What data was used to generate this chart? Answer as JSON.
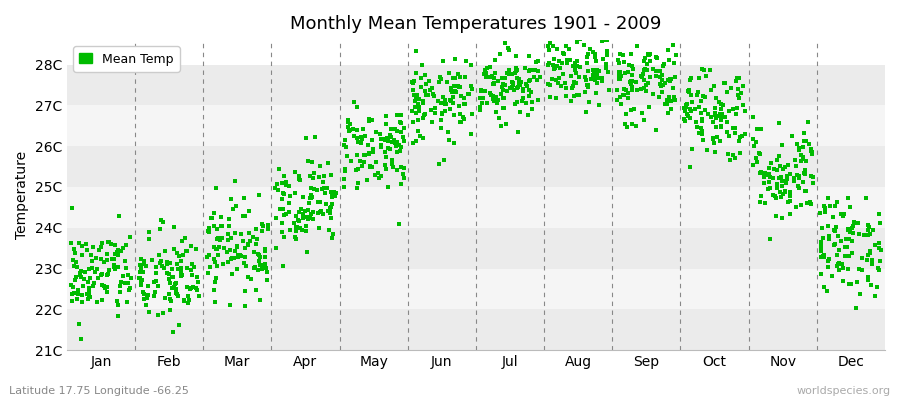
{
  "title": "Monthly Mean Temperatures 1901 - 2009",
  "ylabel": "Temperature",
  "legend_label": "Mean Temp",
  "subtitle": "Latitude 17.75 Longitude -66.25",
  "watermark": "worldspecies.org",
  "dot_color": "#00bb00",
  "ylim": [
    21.0,
    28.6
  ],
  "yticks": [
    21,
    22,
    23,
    24,
    25,
    26,
    27,
    28
  ],
  "ytick_labels": [
    "21C",
    "22C",
    "23C",
    "24C",
    "25C",
    "26C",
    "27C",
    "28C"
  ],
  "months": [
    "Jan",
    "Feb",
    "Mar",
    "Apr",
    "May",
    "Jun",
    "Jul",
    "Aug",
    "Sep",
    "Oct",
    "Nov",
    "Dec"
  ],
  "month_means": [
    22.8,
    22.7,
    23.5,
    24.6,
    25.9,
    27.0,
    27.5,
    27.8,
    27.5,
    26.8,
    25.3,
    23.5
  ],
  "month_stds": [
    0.55,
    0.6,
    0.55,
    0.55,
    0.52,
    0.5,
    0.45,
    0.45,
    0.52,
    0.58,
    0.6,
    0.6
  ],
  "n_years": 109,
  "seed": 42,
  "stripe_colors": [
    "#ebebeb",
    "#f5f5f5"
  ],
  "vline_color": "#888888",
  "bg_white": "#ffffff"
}
